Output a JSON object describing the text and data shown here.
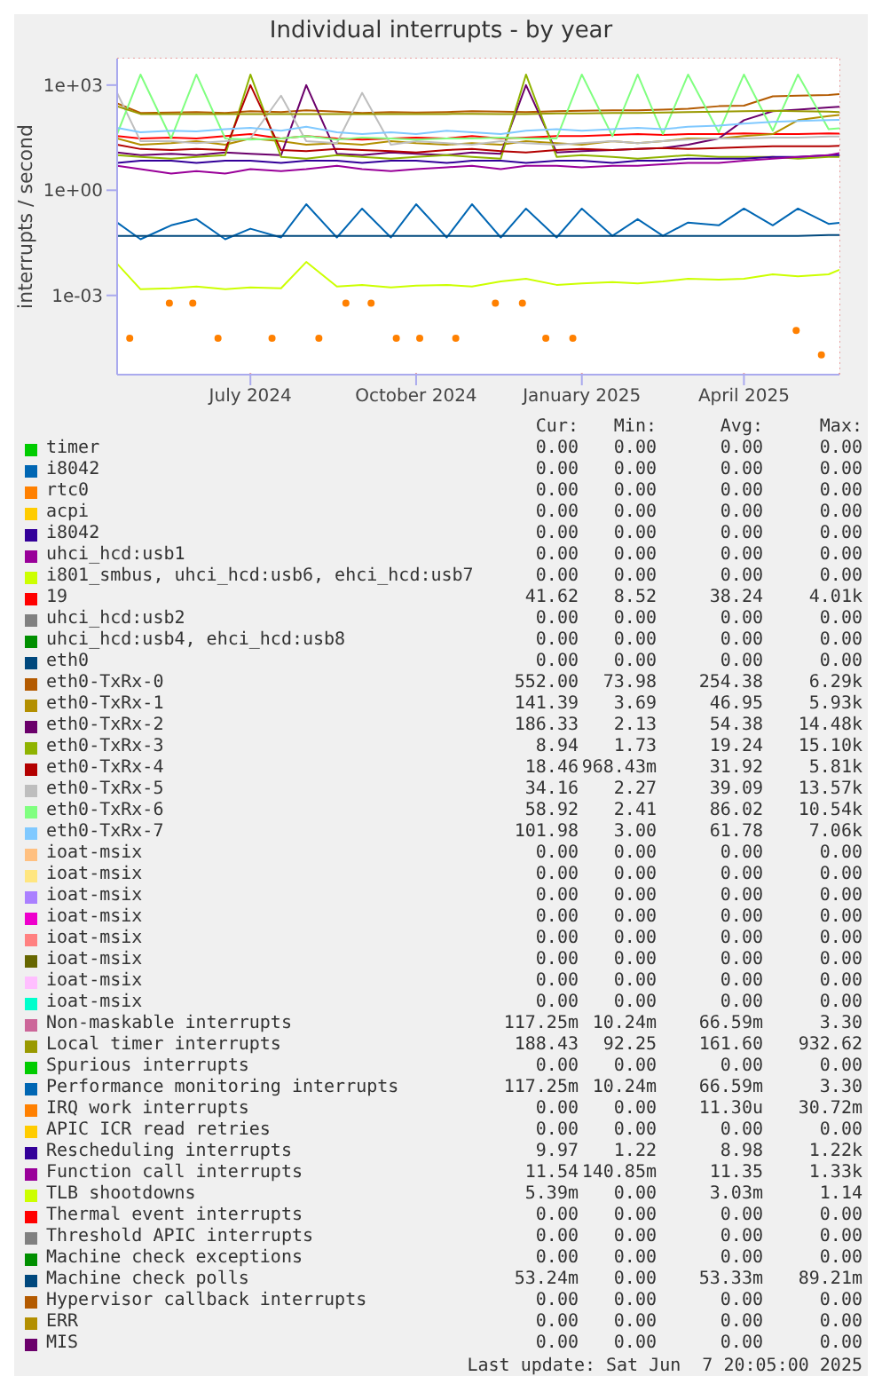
{
  "chart_data": {
    "type": "line",
    "title": "Individual interrupts - by year",
    "ylabel": "interrupts / second",
    "log": "y",
    "grid": true,
    "legend": "bottom",
    "x": [
      "2024-05-02",
      "2024-05-15",
      "2024-06-01",
      "2024-06-15",
      "2024-07-01",
      "2024-07-15",
      "2024-08-01",
      "2024-08-15",
      "2024-09-01",
      "2024-09-15",
      "2024-10-01",
      "2024-10-15",
      "2024-11-01",
      "2024-11-15",
      "2024-12-01",
      "2024-12-15",
      "2025-01-01",
      "2025-01-15",
      "2025-02-01",
      "2025-02-15",
      "2025-03-01",
      "2025-03-15",
      "2025-04-01",
      "2025-04-15",
      "2025-05-01",
      "2025-05-15",
      "2025-06-01",
      "2025-06-07"
    ],
    "xlim": [
      "2024-05-02",
      "2025-06-07"
    ],
    "xticks": [
      {
        "value": "2024-07-15",
        "label": "July 2024"
      },
      {
        "value": "2024-10-15",
        "label": "October 2024"
      },
      {
        "value": "2025-01-15",
        "label": "January 2025"
      },
      {
        "value": "2025-04-15",
        "label": "April 2025"
      }
    ],
    "ylim": [
      5.5e-06,
      5700
    ],
    "yticks": [
      {
        "value": 0.001,
        "label": "1e-03"
      },
      {
        "value": 1,
        "label": "1e+00"
      },
      {
        "value": 1000,
        "label": "1e+03"
      }
    ],
    "series": [
      {
        "name": "timer",
        "color": "#00cc00",
        "values": [
          null,
          null,
          null,
          null,
          null,
          null,
          null,
          null,
          null,
          null,
          null,
          null,
          null,
          null,
          null,
          null,
          null,
          null,
          null,
          null,
          null,
          null,
          null,
          null,
          null,
          null,
          null,
          null
        ]
      },
      {
        "name": "i8042",
        "color": "#0066b3",
        "values": [
          null,
          null,
          null,
          null,
          null,
          null,
          null,
          null,
          null,
          null,
          null,
          null,
          null,
          null,
          null,
          null,
          null,
          null,
          null,
          null,
          null,
          null,
          null,
          null,
          null,
          null,
          null,
          null
        ]
      },
      {
        "name": "rtc0",
        "color": "#ff8000",
        "values": [
          null,
          null,
          null,
          null,
          null,
          null,
          null,
          null,
          null,
          null,
          null,
          null,
          null,
          null,
          null,
          null,
          null,
          null,
          null,
          null,
          null,
          null,
          null,
          null,
          null,
          null,
          null,
          null
        ]
      },
      {
        "name": "acpi",
        "color": "#ffcc00",
        "values": [
          null,
          null,
          null,
          null,
          null,
          null,
          null,
          null,
          null,
          null,
          null,
          null,
          null,
          null,
          null,
          null,
          null,
          null,
          null,
          null,
          null,
          null,
          null,
          null,
          null,
          null,
          null,
          null
        ]
      },
      {
        "name": "i8042",
        "color": "#330099",
        "values": [
          null,
          null,
          null,
          null,
          null,
          null,
          null,
          null,
          null,
          null,
          null,
          null,
          null,
          null,
          null,
          null,
          null,
          null,
          null,
          null,
          null,
          null,
          null,
          null,
          null,
          null,
          null,
          null
        ]
      },
      {
        "name": "uhci_hcd:usb1",
        "color": "#990099",
        "values": [
          null,
          null,
          null,
          null,
          null,
          null,
          null,
          null,
          null,
          null,
          null,
          null,
          null,
          null,
          null,
          null,
          null,
          null,
          null,
          null,
          null,
          null,
          null,
          null,
          null,
          null,
          null,
          null
        ]
      },
      {
        "name": "i801_smbus, uhci_hcd:usb6, ehci_hcd:usb7",
        "color": "#ccff00",
        "values": [
          null,
          null,
          null,
          null,
          null,
          null,
          null,
          null,
          null,
          null,
          null,
          null,
          null,
          null,
          null,
          null,
          null,
          null,
          null,
          null,
          null,
          null,
          null,
          null,
          null,
          null,
          null,
          null
        ]
      },
      {
        "name": "19",
        "color": "#ff0000",
        "values": [
          35,
          30,
          32,
          30,
          35,
          40,
          30,
          35,
          30,
          28,
          30,
          32,
          30,
          35,
          30,
          32,
          35,
          35,
          38,
          40,
          38,
          40,
          40,
          42,
          40,
          40,
          42,
          41.6
        ]
      },
      {
        "name": "uhci_hcd:usb2",
        "color": "#808080",
        "values": [
          null,
          null,
          null,
          null,
          null,
          null,
          null,
          null,
          null,
          null,
          null,
          null,
          null,
          null,
          null,
          null,
          null,
          null,
          null,
          null,
          null,
          null,
          null,
          null,
          null,
          null,
          null,
          null
        ]
      },
      {
        "name": "uhci_hcd:usb4, ehci_hcd:usb8",
        "color": "#008f00",
        "values": [
          null,
          null,
          null,
          null,
          null,
          null,
          null,
          null,
          null,
          null,
          null,
          null,
          null,
          null,
          null,
          null,
          null,
          null,
          null,
          null,
          null,
          null,
          null,
          null,
          null,
          null,
          null,
          null
        ]
      },
      {
        "name": "eth0",
        "color": "#00487d",
        "values": [
          null,
          null,
          null,
          null,
          null,
          null,
          null,
          null,
          null,
          null,
          null,
          null,
          null,
          null,
          null,
          null,
          null,
          null,
          null,
          null,
          null,
          null,
          null,
          null,
          null,
          null,
          null,
          null
        ]
      },
      {
        "name": "eth0-TxRx-0",
        "color": "#b35a00",
        "values": [
          300,
          160,
          165,
          170,
          160,
          180,
          170,
          190,
          175,
          160,
          170,
          165,
          170,
          180,
          175,
          170,
          180,
          185,
          190,
          190,
          200,
          210,
          250,
          260,
          480,
          500,
          520,
          552
        ]
      },
      {
        "name": "eth0-TxRx-1",
        "color": "#b38f00",
        "values": [
          30,
          20,
          22,
          25,
          20,
          30,
          25,
          20,
          22,
          20,
          25,
          22,
          20,
          22,
          20,
          25,
          22,
          20,
          25,
          22,
          25,
          30,
          30,
          35,
          40,
          100,
          130,
          141
        ]
      },
      {
        "name": "eth0-TxRx-2",
        "color": "#6b006b",
        "values": [
          12,
          10,
          11,
          10,
          12,
          11,
          10,
          1000,
          11,
          10,
          12,
          11,
          10,
          12,
          11,
          1000,
          12,
          13,
          14,
          15,
          16,
          20,
          30,
          100,
          180,
          200,
          230,
          240
        ]
      },
      {
        "name": "eth0-TxRx-3",
        "color": "#8fb300",
        "values": [
          10,
          9,
          8,
          9,
          10,
          2000,
          9,
          8,
          10,
          9,
          8,
          9,
          10,
          9,
          8,
          2000,
          9,
          10,
          9,
          8,
          9,
          10,
          9,
          9,
          9,
          8,
          9,
          8.9
        ]
      },
      {
        "name": "eth0-TxRx-4",
        "color": "#b30000",
        "values": [
          20,
          15,
          14,
          15,
          14,
          1000,
          14,
          13,
          15,
          14,
          13,
          12,
          14,
          15,
          13,
          12,
          14,
          15,
          14,
          15,
          16,
          15,
          16,
          17,
          18,
          18,
          18,
          18.5
        ]
      },
      {
        "name": "eth0-TxRx-5",
        "color": "#bebebe",
        "values": [
          600,
          25,
          25,
          22,
          25,
          30,
          500,
          25,
          22,
          600,
          20,
          25,
          22,
          20,
          25,
          22,
          20,
          22,
          25,
          22,
          25,
          28,
          30,
          30,
          32,
          32,
          34,
          34
        ]
      },
      {
        "name": "eth0-TxRx-6",
        "color": "#80ff80",
        "values": [
          40,
          2000,
          30,
          2000,
          30,
          28,
          30,
          35,
          28,
          32,
          30,
          28,
          30,
          30,
          32,
          30,
          30,
          2000,
          35,
          2000,
          40,
          2000,
          45,
          2000,
          50,
          2000,
          55,
          59
        ]
      },
      {
        "name": "eth0-TxRx-7",
        "color": "#80c9ff",
        "values": [
          60,
          45,
          50,
          48,
          55,
          60,
          50,
          65,
          45,
          40,
          45,
          40,
          50,
          45,
          40,
          50,
          55,
          50,
          55,
          60,
          55,
          65,
          70,
          80,
          90,
          95,
          100,
          102
        ]
      },
      {
        "name": "ioat-msix",
        "color": "#ffc080",
        "values": [
          null,
          null,
          null,
          null,
          null,
          null,
          null,
          null,
          null,
          null,
          null,
          null,
          null,
          null,
          null,
          null,
          null,
          null,
          null,
          null,
          null,
          null,
          null,
          null,
          null,
          null,
          null,
          null
        ]
      },
      {
        "name": "ioat-msix",
        "color": "#ffe680",
        "values": [
          null,
          null,
          null,
          null,
          null,
          null,
          null,
          null,
          null,
          null,
          null,
          null,
          null,
          null,
          null,
          null,
          null,
          null,
          null,
          null,
          null,
          null,
          null,
          null,
          null,
          null,
          null,
          null
        ]
      },
      {
        "name": "ioat-msix",
        "color": "#aa80ff",
        "values": [
          null,
          null,
          null,
          null,
          null,
          null,
          null,
          null,
          null,
          null,
          null,
          null,
          null,
          null,
          null,
          null,
          null,
          null,
          null,
          null,
          null,
          null,
          null,
          null,
          null,
          null,
          null,
          null
        ]
      },
      {
        "name": "ioat-msix",
        "color": "#ee00cc",
        "values": [
          null,
          null,
          null,
          null,
          null,
          null,
          null,
          null,
          null,
          null,
          null,
          null,
          null,
          null,
          null,
          null,
          null,
          null,
          null,
          null,
          null,
          null,
          null,
          null,
          null,
          null,
          null,
          null
        ]
      },
      {
        "name": "ioat-msix",
        "color": "#ff8080",
        "values": [
          null,
          null,
          null,
          null,
          null,
          null,
          null,
          null,
          null,
          null,
          null,
          null,
          null,
          null,
          null,
          null,
          null,
          null,
          null,
          null,
          null,
          null,
          null,
          null,
          null,
          null,
          null,
          null
        ]
      },
      {
        "name": "ioat-msix",
        "color": "#666600",
        "values": [
          null,
          null,
          null,
          null,
          null,
          null,
          null,
          null,
          null,
          null,
          null,
          null,
          null,
          null,
          null,
          null,
          null,
          null,
          null,
          null,
          null,
          null,
          null,
          null,
          null,
          null,
          null,
          null
        ]
      },
      {
        "name": "ioat-msix",
        "color": "#ffbfff",
        "values": [
          null,
          null,
          null,
          null,
          null,
          null,
          null,
          null,
          null,
          null,
          null,
          null,
          null,
          null,
          null,
          null,
          null,
          null,
          null,
          null,
          null,
          null,
          null,
          null,
          null,
          null,
          null,
          null
        ]
      },
      {
        "name": "ioat-msix",
        "color": "#00ffcc",
        "values": [
          null,
          null,
          null,
          null,
          null,
          null,
          null,
          null,
          null,
          null,
          null,
          null,
          null,
          null,
          null,
          null,
          null,
          null,
          null,
          null,
          null,
          null,
          null,
          null,
          null,
          null,
          null,
          null
        ]
      },
      {
        "name": "Non-maskable interrupts",
        "color": "#cc6699",
        "values": [
          null,
          null,
          null,
          null,
          null,
          null,
          null,
          null,
          null,
          null,
          null,
          null,
          null,
          null,
          null,
          null,
          null,
          null,
          null,
          null,
          null,
          null,
          null,
          null,
          null,
          null,
          null,
          null
        ]
      },
      {
        "name": "Local timer interrupts",
        "color": "#999900",
        "values": [
          250,
          150,
          150,
          148,
          150,
          150,
          150,
          150,
          150,
          148,
          150,
          150,
          150,
          152,
          150,
          150,
          155,
          155,
          160,
          160,
          165,
          170,
          175,
          180,
          185,
          180,
          175,
          170
        ]
      },
      {
        "name": "Spurious interrupts",
        "color": "#00cc00",
        "values": [
          null,
          null,
          null,
          null,
          null,
          null,
          null,
          null,
          null,
          null,
          null,
          null,
          null,
          null,
          null,
          null,
          null,
          null,
          null,
          null,
          null,
          null,
          null,
          null,
          null,
          null,
          null,
          null
        ]
      },
      {
        "name": "Performance monitoring interrupts",
        "color": "#0066b3",
        "values": [
          0.12,
          0.04,
          0.1,
          0.15,
          0.04,
          0.08,
          0.045,
          0.4,
          0.045,
          0.3,
          0.045,
          0.4,
          0.045,
          0.4,
          0.045,
          0.3,
          0.045,
          0.3,
          0.05,
          0.15,
          0.05,
          0.12,
          0.1,
          0.3,
          0.1,
          0.3,
          0.11,
          0.117
        ]
      },
      {
        "name": "IRQ work interrupts",
        "color": "#ff8000",
        "type": "scatter",
        "x": [
          "2024-05-09",
          "2024-05-31",
          "2024-06-13",
          "2024-06-27",
          "2024-07-27",
          "2024-08-22",
          "2024-09-06",
          "2024-09-20",
          "2024-10-04",
          "2024-10-17",
          "2024-11-06",
          "2024-11-28",
          "2024-12-13",
          "2024-12-26",
          "2025-01-10",
          "2025-05-14",
          "2025-05-28"
        ],
        "values": [
          6e-05,
          0.0006,
          0.0006,
          6e-05,
          6e-05,
          6e-05,
          0.0006,
          0.0006,
          6e-05,
          6e-05,
          6e-05,
          0.0006,
          0.0006,
          6e-05,
          6e-05,
          0.0001,
          2e-05
        ]
      },
      {
        "name": "APIC ICR read retries",
        "color": "#ffcc00",
        "values": [
          null,
          null,
          null,
          null,
          null,
          null,
          null,
          null,
          null,
          null,
          null,
          null,
          null,
          null,
          null,
          null,
          null,
          null,
          null,
          null,
          null,
          null,
          null,
          null,
          null,
          null,
          null,
          null
        ]
      },
      {
        "name": "Rescheduling interrupts",
        "color": "#330099",
        "values": [
          6,
          7,
          7,
          6,
          7,
          7,
          6,
          7,
          7,
          6,
          7,
          7,
          6,
          7,
          7,
          6,
          7,
          7,
          6,
          7,
          7,
          8,
          8,
          8,
          9,
          9,
          10,
          9.97
        ]
      },
      {
        "name": "Function call interrupts",
        "color": "#990099",
        "values": [
          5,
          4,
          3,
          3.5,
          3,
          4,
          3.5,
          4,
          5,
          4,
          3.5,
          4,
          4.5,
          5,
          4,
          5,
          5,
          4.5,
          5,
          5,
          5.5,
          6,
          6,
          7,
          8,
          9,
          10,
          11.5
        ]
      },
      {
        "name": "TLB shootdowns",
        "color": "#ccff00",
        "values": [
          0.008,
          0.0015,
          0.0016,
          0.0018,
          0.0015,
          0.0017,
          0.0016,
          0.009,
          0.0018,
          0.002,
          0.0017,
          0.0019,
          0.002,
          0.0018,
          0.0025,
          0.003,
          0.002,
          0.0022,
          0.0024,
          0.0022,
          0.0025,
          0.003,
          0.0028,
          0.003,
          0.004,
          0.0035,
          0.004,
          0.0054
        ]
      },
      {
        "name": "Thermal event interrupts",
        "color": "#ff0000",
        "values": [
          null,
          null,
          null,
          null,
          null,
          null,
          null,
          null,
          null,
          null,
          null,
          null,
          null,
          null,
          null,
          null,
          null,
          null,
          null,
          null,
          null,
          null,
          null,
          null,
          null,
          null,
          null,
          null
        ]
      },
      {
        "name": "Threshold APIC interrupts",
        "color": "#808080",
        "values": [
          null,
          null,
          null,
          null,
          null,
          null,
          null,
          null,
          null,
          null,
          null,
          null,
          null,
          null,
          null,
          null,
          null,
          null,
          null,
          null,
          null,
          null,
          null,
          null,
          null,
          null,
          null,
          null
        ]
      },
      {
        "name": "Machine check exceptions",
        "color": "#008f00",
        "values": [
          null,
          null,
          null,
          null,
          null,
          null,
          null,
          null,
          null,
          null,
          null,
          null,
          null,
          null,
          null,
          null,
          null,
          null,
          null,
          null,
          null,
          null,
          null,
          null,
          null,
          null,
          null,
          null
        ]
      },
      {
        "name": "Machine check polls",
        "color": "#00487d",
        "values": [
          0.05,
          0.05,
          0.05,
          0.05,
          0.05,
          0.05,
          0.05,
          0.05,
          0.05,
          0.05,
          0.05,
          0.05,
          0.05,
          0.05,
          0.05,
          0.05,
          0.05,
          0.05,
          0.05,
          0.05,
          0.05,
          0.05,
          0.05,
          0.05,
          0.05,
          0.05,
          0.053,
          0.053
        ]
      },
      {
        "name": "Hypervisor callback interrupts",
        "color": "#b35a00",
        "values": [
          null,
          null,
          null,
          null,
          null,
          null,
          null,
          null,
          null,
          null,
          null,
          null,
          null,
          null,
          null,
          null,
          null,
          null,
          null,
          null,
          null,
          null,
          null,
          null,
          null,
          null,
          null,
          null
        ]
      },
      {
        "name": "ERR",
        "color": "#b38f00",
        "values": [
          null,
          null,
          null,
          null,
          null,
          null,
          null,
          null,
          null,
          null,
          null,
          null,
          null,
          null,
          null,
          null,
          null,
          null,
          null,
          null,
          null,
          null,
          null,
          null,
          null,
          null,
          null,
          null
        ]
      },
      {
        "name": "MIS",
        "color": "#6b006b",
        "values": [
          null,
          null,
          null,
          null,
          null,
          null,
          null,
          null,
          null,
          null,
          null,
          null,
          null,
          null,
          null,
          null,
          null,
          null,
          null,
          null,
          null,
          null,
          null,
          null,
          null,
          null,
          null,
          null
        ]
      }
    ],
    "annotations": [
      "Cur:",
      "Min:",
      "Avg:",
      "Max:",
      "0.00",
      "0.00",
      "0.00",
      "0.00",
      "0.00",
      "0.00",
      "0.00",
      "0.00",
      "0.00",
      "0.00",
      "0.00",
      "0.00",
      "0.00",
      "0.00",
      "0.00",
      "0.00",
      "0.00",
      "0.00",
      "0.00",
      "0.00",
      "0.00",
      "0.00",
      "0.00",
      "0.00",
      "0.00",
      "0.00",
      "0.00",
      "0.00",
      "41.62",
      "8.52",
      "38.24",
      "4.01k",
      "0.00",
      "0.00",
      "0.00",
      "0.00",
      "0.00",
      "0.00",
      "0.00",
      "0.00",
      "0.00",
      "0.00",
      "0.00",
      "0.00",
      "552.00",
      "73.98",
      "254.38",
      "6.29k",
      "141.39",
      "3.69",
      "46.95",
      "5.93k",
      "186.33",
      "2.13",
      "54.38",
      "14.48k",
      "8.94",
      "1.73",
      "19.24",
      "15.10k",
      "18.46",
      "968.43m",
      "31.92",
      "5.81k",
      "34.16",
      "2.27",
      "39.09",
      "13.57k",
      "58.92",
      "2.41",
      "86.02",
      "10.54k",
      "101.98",
      "3.00",
      "61.78",
      "7.06k",
      "0.00",
      "0.00",
      "0.00",
      "0.00",
      "0.00",
      "0.00",
      "0.00",
      "0.00",
      "0.00",
      "0.00",
      "0.00",
      "0.00",
      "0.00",
      "0.00",
      "0.00",
      "0.00",
      "0.00",
      "0.00",
      "0.00",
      "0.00",
      "0.00",
      "0.00",
      "0.00",
      "0.00",
      "0.00",
      "0.00",
      "0.00",
      "0.00",
      "0.00",
      "0.00",
      "0.00",
      "0.00",
      "117.25m",
      "10.24m",
      "66.59m",
      "3.30",
      "188.43",
      "92.25",
      "161.60",
      "932.62",
      "0.00",
      "0.00",
      "0.00",
      "0.00",
      "117.25m",
      "10.24m",
      "66.59m",
      "3.30",
      "0.00",
      "0.00",
      "11.30u",
      "30.72m",
      "0.00",
      "0.00",
      "0.00",
      "0.00",
      "9.97",
      "1.22",
      "8.98",
      "1.22k",
      "11.54",
      "140.85m",
      "11.35",
      "1.33k",
      "5.39m",
      "0.00",
      "3.03m",
      "1.14",
      "0.00",
      "0.00",
      "0.00",
      "0.00",
      "0.00",
      "0.00",
      "0.00",
      "0.00",
      "0.00",
      "0.00",
      "0.00",
      "0.00",
      "53.24m",
      "0.00",
      "53.33m",
      "89.21m",
      "0.00",
      "0.00",
      "0.00",
      "0.00",
      "0.00",
      "0.00",
      "0.00",
      "0.00",
      "0.00",
      "0.00",
      "0.00",
      "0.00",
      "Last update: Sat Jun  7 20:05:00 2025"
    ]
  }
}
